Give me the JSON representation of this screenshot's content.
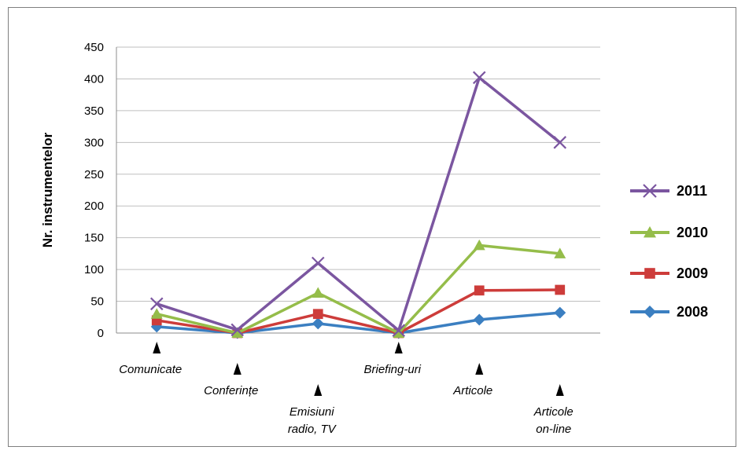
{
  "chart_data": {
    "type": "line",
    "ylabel": "Nr. instrumentelor",
    "xlabel": "",
    "title": "",
    "ylim": [
      0,
      450
    ],
    "yticks": [
      0,
      50,
      100,
      150,
      200,
      250,
      300,
      350,
      400,
      450
    ],
    "grid": true,
    "legend_position": "right",
    "categories": [
      [
        "Comunicate"
      ],
      [
        "Conferințe"
      ],
      [
        "Emisiuni",
        "radio, TV"
      ],
      [
        "Briefing-uri"
      ],
      [
        "Articole"
      ],
      [
        "Articole",
        "on-line"
      ]
    ],
    "series": [
      {
        "name": "2011",
        "color": "#7b56a0",
        "marker": "x-mark",
        "values": [
          46,
          5,
          110,
          4,
          402,
          300
        ]
      },
      {
        "name": "2010",
        "color": "#95bd4a",
        "marker": "triangle",
        "values": [
          30,
          0,
          63,
          0,
          138,
          125
        ]
      },
      {
        "name": "2009",
        "color": "#cd3c3a",
        "marker": "square",
        "values": [
          20,
          0,
          30,
          0,
          67,
          68
        ]
      },
      {
        "name": "2008",
        "color": "#3b7fc1",
        "marker": "diamond",
        "values": [
          10,
          0,
          15,
          0,
          21,
          32
        ]
      }
    ]
  }
}
